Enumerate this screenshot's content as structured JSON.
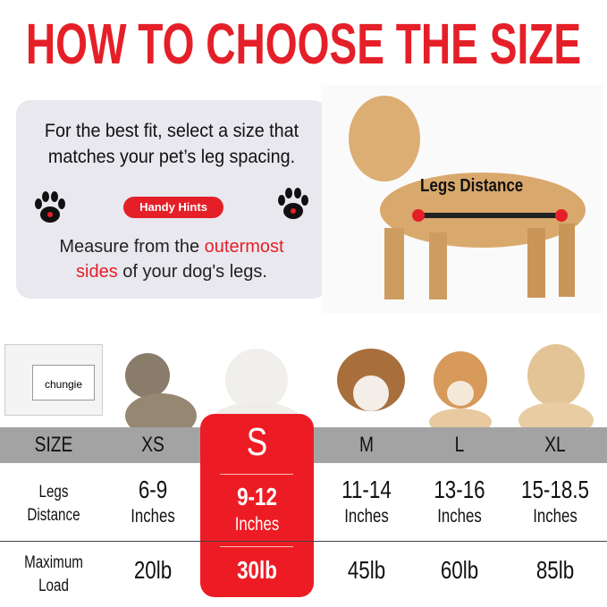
{
  "title": "HOW TO CHOOSE THE SIZE",
  "info": {
    "line1": "For the best fit, select a size that",
    "line2": "matches your pet’s leg spacing.",
    "badge": "Handy Hints",
    "measure_pre": "Measure from the ",
    "measure_red1": "outermost",
    "measure_red2": "sides",
    "measure_post": " of your dog's legs."
  },
  "dog_label": "Legs Distance",
  "brand": "chungie",
  "colors": {
    "accent": "#e51f28",
    "header": "#a3a3a3",
    "panel": "#e9e8ef"
  },
  "table": {
    "row_headers": {
      "size": "SIZE",
      "legs": [
        "Legs",
        "Distance"
      ],
      "load": [
        "Maximum",
        "Load"
      ]
    },
    "columns": [
      {
        "size": "XS",
        "legs": "6-9",
        "unit": "Inches",
        "load": "20lb"
      },
      {
        "size": "S",
        "legs": "9-12",
        "unit": "Inches",
        "load": "30lb",
        "highlighted": true
      },
      {
        "size": "M",
        "legs": "11-14",
        "unit": "Inches",
        "load": "45lb"
      },
      {
        "size": "L",
        "legs": "13-16",
        "unit": "Inches",
        "load": "60lb"
      },
      {
        "size": "XL",
        "legs": "15-18.5",
        "unit": "Inches",
        "load": "85lb"
      }
    ]
  }
}
